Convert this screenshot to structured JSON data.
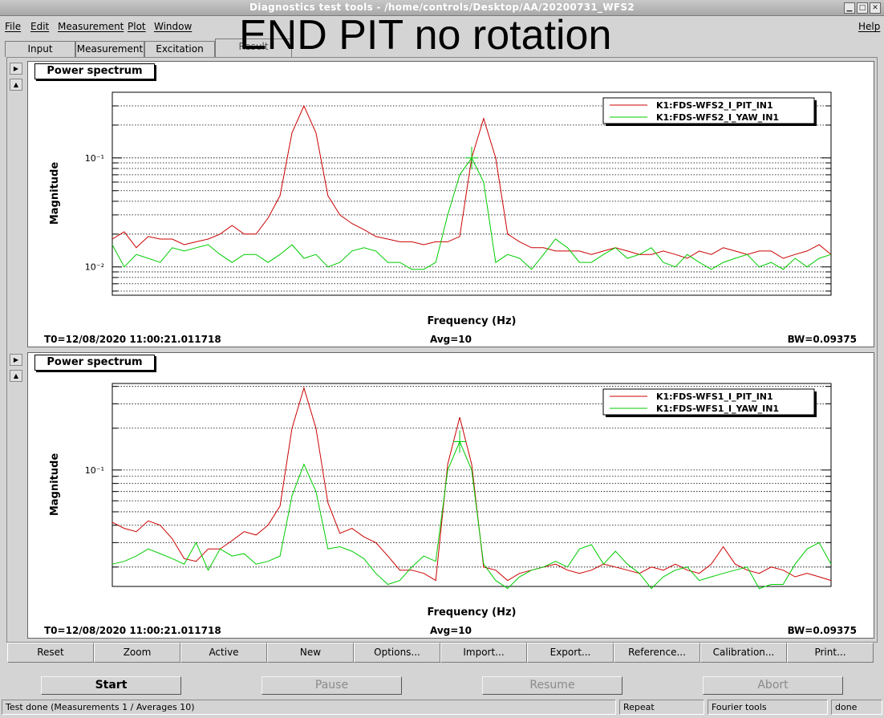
{
  "window": {
    "title": "Diagnostics test tools - /home/controls/Desktop/AA/20200731_WFS2"
  },
  "menu": {
    "file": "File",
    "edit": "Edit",
    "measurement": "Measurement",
    "plot": "Plot",
    "window": "Window",
    "help": "Help"
  },
  "overlay_text": "END PIT no rotation",
  "tabs": [
    {
      "label": "Input"
    },
    {
      "label": "Measurement"
    },
    {
      "label": "Excitation"
    },
    {
      "label": "Result"
    }
  ],
  "plots": [
    {
      "panel_title": "Power spectrum",
      "footer": {
        "t0": "T0=12/08/2020 11:00:21.011718",
        "avg": "Avg=10",
        "bw": "BW=0.09375"
      },
      "ytick_labels": [
        "10⁻¹",
        "10⁻²"
      ]
    },
    {
      "panel_title": "Power spectrum",
      "footer": {
        "t0": "T0=12/08/2020 11:00:21.011718",
        "avg": "Avg=10",
        "bw": "BW=0.09375"
      },
      "ytick_labels": [
        "10⁻¹"
      ]
    }
  ],
  "chart_data": [
    {
      "type": "line",
      "title": "",
      "xlabel": "Frequency (Hz)",
      "ylabel": "Magnitude",
      "yscale": "log",
      "ylim": [
        0.0055,
        0.4
      ],
      "legend": "top-right",
      "grid": true,
      "colors": [
        "#cc0000",
        "#00cc00"
      ],
      "series": [
        {
          "name": "K1:FDS-WFS2_I_PIT_IN1",
          "values": [
            0.018,
            0.021,
            0.015,
            0.019,
            0.018,
            0.018,
            0.016,
            0.017,
            0.018,
            0.02,
            0.024,
            0.02,
            0.02,
            0.028,
            0.045,
            0.17,
            0.3,
            0.17,
            0.045,
            0.03,
            0.025,
            0.022,
            0.019,
            0.018,
            0.017,
            0.017,
            0.016,
            0.017,
            0.017,
            0.019,
            0.1,
            0.23,
            0.1,
            0.02,
            0.017,
            0.015,
            0.015,
            0.014,
            0.014,
            0.014,
            0.013,
            0.014,
            0.015,
            0.014,
            0.013,
            0.013,
            0.014,
            0.013,
            0.012,
            0.014,
            0.013,
            0.015,
            0.014,
            0.013,
            0.014,
            0.014,
            0.012,
            0.013,
            0.014,
            0.016,
            0.013
          ]
        },
        {
          "name": "K1:FDS-WFS2_I_YAW_IN1",
          "values": [
            0.016,
            0.01,
            0.013,
            0.012,
            0.011,
            0.015,
            0.014,
            0.015,
            0.016,
            0.013,
            0.011,
            0.013,
            0.013,
            0.011,
            0.013,
            0.016,
            0.012,
            0.013,
            0.01,
            0.011,
            0.014,
            0.015,
            0.014,
            0.011,
            0.011,
            0.0095,
            0.0095,
            0.011,
            0.03,
            0.07,
            0.1,
            0.06,
            0.011,
            0.013,
            0.012,
            0.0095,
            0.013,
            0.018,
            0.015,
            0.011,
            0.011,
            0.013,
            0.015,
            0.012,
            0.013,
            0.015,
            0.011,
            0.01,
            0.013,
            0.011,
            0.0095,
            0.011,
            0.012,
            0.013,
            0.01,
            0.011,
            0.0095,
            0.012,
            0.01,
            0.012,
            0.013
          ]
        }
      ]
    },
    {
      "type": "line",
      "title": "",
      "xlabel": "Frequency (Hz)",
      "ylabel": "Magnitude",
      "yscale": "log",
      "ylim": [
        0.0145,
        0.42
      ],
      "legend": "top-right",
      "grid": true,
      "colors": [
        "#cc0000",
        "#00cc00"
      ],
      "series": [
        {
          "name": "K1:FDS-WFS1_I_PIT_IN1",
          "values": [
            0.042,
            0.038,
            0.036,
            0.043,
            0.04,
            0.032,
            0.023,
            0.022,
            0.027,
            0.027,
            0.031,
            0.036,
            0.034,
            0.04,
            0.055,
            0.2,
            0.39,
            0.2,
            0.058,
            0.035,
            0.038,
            0.033,
            0.03,
            0.024,
            0.019,
            0.019,
            0.018,
            0.016,
            0.11,
            0.24,
            0.11,
            0.02,
            0.019,
            0.016,
            0.018,
            0.019,
            0.02,
            0.021,
            0.019,
            0.018,
            0.019,
            0.021,
            0.02,
            0.019,
            0.018,
            0.02,
            0.019,
            0.021,
            0.019,
            0.018,
            0.021,
            0.028,
            0.021,
            0.019,
            0.018,
            0.02,
            0.019,
            0.017,
            0.018,
            0.017,
            0.016
          ]
        },
        {
          "name": "K1:FDS-WFS1_I_YAW_IN1",
          "values": [
            0.021,
            0.022,
            0.024,
            0.027,
            0.025,
            0.023,
            0.021,
            0.03,
            0.019,
            0.027,
            0.024,
            0.025,
            0.021,
            0.022,
            0.024,
            0.065,
            0.11,
            0.07,
            0.027,
            0.028,
            0.026,
            0.023,
            0.018,
            0.015,
            0.016,
            0.02,
            0.024,
            0.022,
            0.1,
            0.16,
            0.1,
            0.021,
            0.016,
            0.014,
            0.017,
            0.019,
            0.02,
            0.022,
            0.02,
            0.027,
            0.029,
            0.021,
            0.026,
            0.021,
            0.018,
            0.014,
            0.017,
            0.019,
            0.02,
            0.016,
            0.017,
            0.018,
            0.019,
            0.02,
            0.014,
            0.015,
            0.015,
            0.021,
            0.027,
            0.03,
            0.021
          ]
        }
      ]
    }
  ],
  "buttons": {
    "reset": "Reset",
    "zoom": "Zoom",
    "active": "Active",
    "new": "New",
    "options": "Options...",
    "import": "Import...",
    "export": "Export...",
    "reference": "Reference...",
    "calibration": "Calibration...",
    "print": "Print...",
    "start": "Start",
    "pause": "Pause",
    "resume": "Resume",
    "abort": "Abort"
  },
  "status": {
    "message": "Test done (Measurements 1 / Averages 10)",
    "mode": "Repeat",
    "tool": "Fourier tools",
    "state": "done"
  }
}
